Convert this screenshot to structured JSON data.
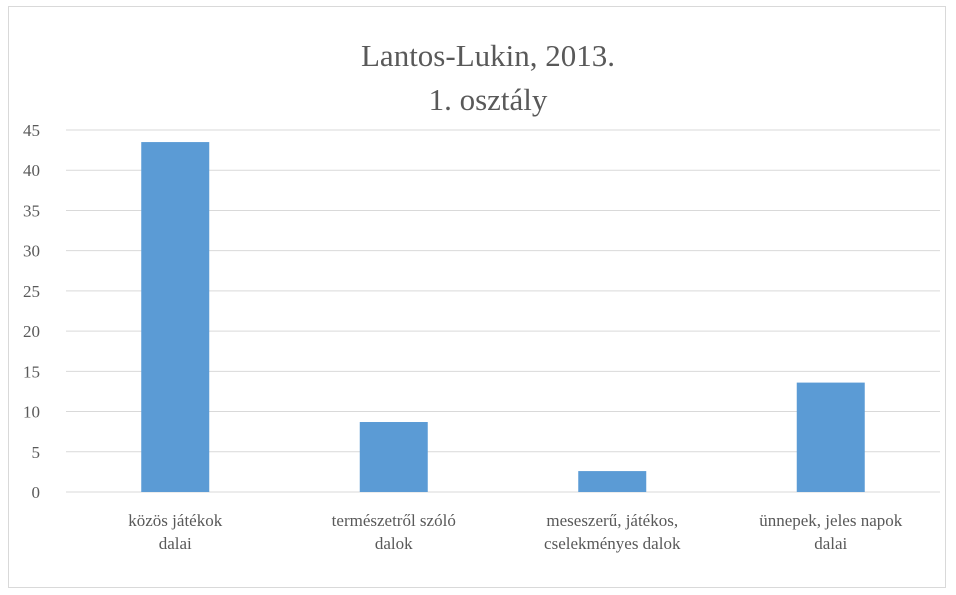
{
  "chart_data": {
    "type": "bar",
    "title_lines": [
      "Lantos-Lukin, 2013.",
      "1. osztály"
    ],
    "categories": [
      [
        "közös játékok",
        "dalai"
      ],
      [
        "természetről szóló",
        "dalok"
      ],
      [
        "meseszerű, játékos,",
        "cselekményes dalok"
      ],
      [
        "ünnepek, jeles napok",
        "dalai"
      ]
    ],
    "values": [
      43.5,
      8.7,
      2.6,
      13.6
    ],
    "y_ticks": [
      0,
      5,
      10,
      15,
      20,
      25,
      30,
      35,
      40,
      45
    ],
    "ylim": [
      0,
      45
    ],
    "grid": true,
    "legend": "none",
    "colors": {
      "bar": "#5b9bd5",
      "grid": "#d9d9d9",
      "text": "#595959"
    }
  }
}
